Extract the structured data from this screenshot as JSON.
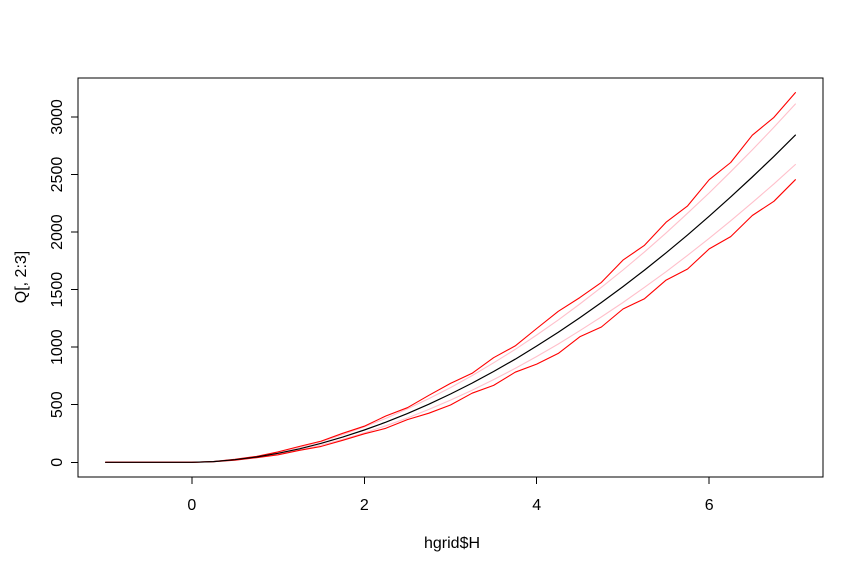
{
  "figure": {
    "background": "#ffffff",
    "border_color": "#000000"
  },
  "chart_data": {
    "type": "line",
    "title": "",
    "xlabel": "hgrid$H",
    "ylabel": "Q[, 2:3]",
    "xlim": [
      -1.32,
      7.32
    ],
    "ylim": [
      -128,
      3339
    ],
    "x_ticks": [
      0,
      2,
      4,
      6
    ],
    "y_ticks": [
      0,
      500,
      1000,
      1500,
      2000,
      2500,
      3000
    ],
    "grid": false,
    "legend": "none",
    "colors": {
      "envelope": "#ff0000",
      "parametric_band": "#ffc0cb",
      "center": "#000000",
      "axis": "#000000"
    },
    "x": [
      -1,
      -0.75,
      -0.5,
      -0.25,
      0,
      0.25,
      0.5,
      0.75,
      1,
      1.25,
      1.5,
      1.75,
      2,
      2.25,
      2.5,
      2.75,
      3,
      3.25,
      3.5,
      3.75,
      4,
      4.25,
      4.5,
      4.75,
      5,
      5.25,
      5.5,
      5.75,
      6,
      6.25,
      6.5,
      6.75,
      7
    ],
    "series": [
      {
        "name": "upper-pink-band-line",
        "color": "#ffc0cb",
        "width": 1.1,
        "style": "smooth",
        "values": [
          0,
          0,
          0,
          0,
          0,
          7,
          24,
          50,
          85,
          129,
          180,
          240,
          307,
          381,
          464,
          553,
          649,
          753,
          864,
          981,
          1106,
          1237,
          1375,
          1520,
          1671,
          1828,
          1993,
          2164,
          2341,
          2525,
          2714,
          2911,
          3113
        ]
      },
      {
        "name": "lower-pink-band-line",
        "color": "#ffc0cb",
        "width": 1.1,
        "style": "smooth",
        "values": [
          0,
          0,
          0,
          0,
          0,
          5,
          20,
          42,
          71,
          107,
          150,
          199,
          255,
          317,
          385,
          459,
          540,
          626,
          718,
          816,
          919,
          1028,
          1143,
          1263,
          1388,
          1520,
          1656,
          1798,
          1946,
          2098,
          2256,
          2419,
          2587
        ]
      },
      {
        "name": "upper-red-envelope-line",
        "color": "#ff0000",
        "width": 1.1,
        "style": "jagged",
        "values": [
          0,
          0,
          0,
          0,
          0,
          7,
          26,
          51,
          90,
          138,
          184,
          252,
          313,
          402,
          474,
          582,
          685,
          773,
          909,
          1011,
          1162,
          1312,
          1431,
          1563,
          1757,
          1885,
          2086,
          2228,
          2455,
          2605,
          2842,
          2997,
          3212
        ]
      },
      {
        "name": "lower-red-envelope-line",
        "color": "#ff0000",
        "width": 1.1,
        "style": "jagged",
        "values": [
          0,
          0,
          0,
          0,
          0,
          5,
          18,
          40,
          65,
          104,
          138,
          191,
          247,
          295,
          371,
          426,
          498,
          600,
          668,
          783,
          853,
          946,
          1090,
          1175,
          1332,
          1421,
          1583,
          1679,
          1854,
          1961,
          2144,
          2268,
          2455
        ]
      },
      {
        "name": "center-black-line",
        "color": "#000000",
        "width": 1.2,
        "style": "smooth",
        "values": [
          0,
          0,
          0,
          0,
          0,
          6,
          22,
          46,
          78,
          117,
          165,
          219,
          280,
          348,
          423,
          505,
          593,
          688,
          789,
          896,
          1010,
          1130,
          1256,
          1388,
          1526,
          1670,
          1820,
          1976,
          2138,
          2306,
          2479,
          2658,
          2843
        ]
      }
    ]
  }
}
